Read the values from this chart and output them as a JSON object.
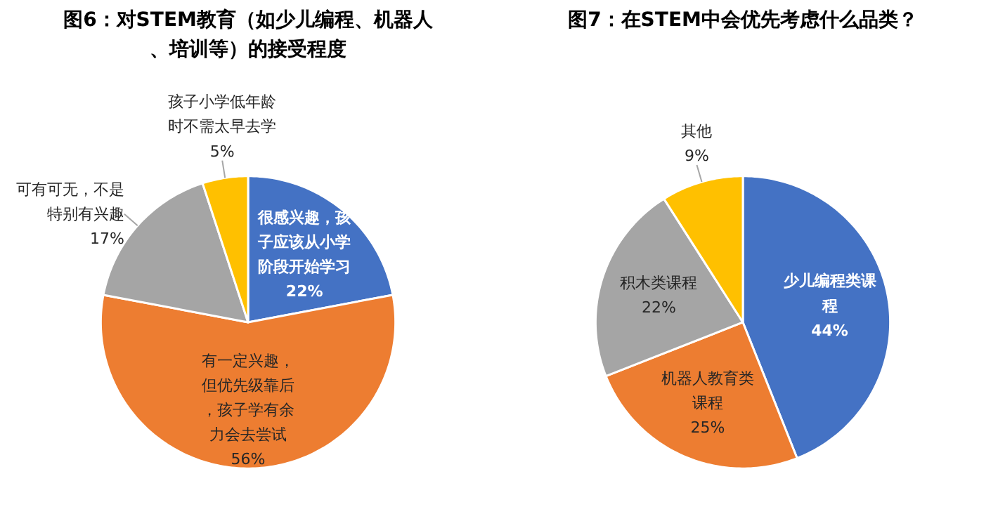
{
  "chart_data": [
    {
      "type": "pie",
      "title": "图6：对STEM教育（如少儿编程、机器人、培训等）的接受程度",
      "categories": [
        "很感兴趣，孩子应该从小学阶段开始学习",
        "有一定兴趣，但优先级靠后，孩子学有余力会去尝试",
        "可有可无，不是特别有兴趣",
        "孩子小学低年龄时不需太早去学"
      ],
      "values": [
        22,
        56,
        17,
        5
      ],
      "value_labels": [
        "22%",
        "56%",
        "17%",
        "5%"
      ],
      "colors": [
        "#4472c4",
        "#ed7d31",
        "#a5a5a5",
        "#ffc000"
      ]
    },
    {
      "type": "pie",
      "title": "图7：在STEM中会优先考虑什么品类？",
      "categories": [
        "少儿编程类课程",
        "机器人教育类课程",
        "积木类课程",
        "其他"
      ],
      "values": [
        44,
        25,
        22,
        9
      ],
      "value_labels": [
        "44%",
        "25%",
        "22%",
        "9%"
      ],
      "colors": [
        "#4472c4",
        "#ed7d31",
        "#a5a5a5",
        "#ffc000"
      ]
    }
  ]
}
